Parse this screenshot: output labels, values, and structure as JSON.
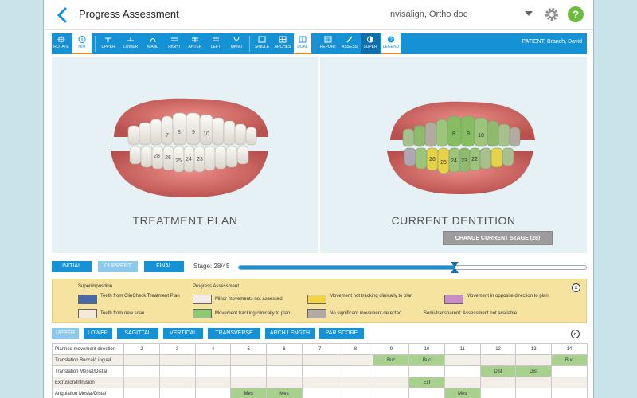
{
  "header": {
    "title": "Progress Assessment",
    "user": "Invisalign, Ortho doc"
  },
  "toolbar": {
    "items": [
      {
        "label": "ROTATE"
      },
      {
        "label": "N/M"
      },
      {
        "label": "UPPER"
      },
      {
        "label": "LOWER"
      },
      {
        "label": "MANL"
      },
      {
        "label": "RIGHT"
      },
      {
        "label": "ANTER"
      },
      {
        "label": "LEFT"
      },
      {
        "label": "MAND"
      },
      {
        "label": "SINGLE"
      },
      {
        "label": "ARCHES"
      },
      {
        "label": "DUAL"
      },
      {
        "label": "REPORT"
      },
      {
        "label": "ASSESS"
      },
      {
        "label": "SUPER"
      },
      {
        "label": "LEGEND"
      }
    ],
    "patient": "PATIENT, Branch, David"
  },
  "views": {
    "left_label": "TREATMENT PLAN",
    "right_label": "CURRENT DENTITION",
    "change_stage": "CHANGE CURRENT STAGE (28)"
  },
  "stage": {
    "initial": "INITIAL",
    "current": "CURRENT",
    "final": "FINAL",
    "label": "Stage:",
    "value": "28/45",
    "fraction": 0.622
  },
  "legend": {
    "superimposition": "Superimposition",
    "progress": "Progress Assessment",
    "items": [
      {
        "text": "Teeth from ClinCheck Treatment Plan",
        "color": "#4a6aa3"
      },
      {
        "text": "Teeth from new scan",
        "color": "#f6ead6"
      },
      {
        "text": "Minor movements not assessed",
        "color": "#f1ece6"
      },
      {
        "text": "Movement tracking clinically to plan",
        "color": "#8fca72"
      },
      {
        "text": "Movement not tracking clinically to plan",
        "color": "#f2d340"
      },
      {
        "text": "No significant movement detected",
        "color": "#b3aba2"
      },
      {
        "text": "Movement in opposite direction to plan",
        "color": "#c98cc4"
      },
      {
        "text": "Semi-transparent:  Assessment not available"
      }
    ]
  },
  "movement_tabs": [
    "UPPER",
    "LOWER",
    "SAGITTAL",
    "VERTICAL",
    "TRANSVERSE",
    "ARCH LENGTH",
    "PAR SCORE"
  ],
  "table": {
    "header_label": "Planned movement direction",
    "teeth": [
      "2",
      "3",
      "4",
      "5",
      "6",
      "7",
      "8",
      "9",
      "10",
      "11",
      "12",
      "13",
      "14"
    ],
    "rows": [
      {
        "label": "Translation Buccal/Lingual",
        "cells": [
          "",
          "",
          "",
          "",
          "",
          "",
          "",
          "Buc",
          "Buc",
          "",
          "",
          "",
          "Buc"
        ]
      },
      {
        "label": "Translation Mesial/Distal",
        "cells": [
          "",
          "",
          "",
          "",
          "",
          "",
          "",
          "",
          "",
          "",
          "Dist",
          "Dist",
          ""
        ]
      },
      {
        "label": "Extrusion/Intrusion",
        "cells": [
          "",
          "",
          "",
          "",
          "",
          "",
          "",
          "",
          "Ext",
          "",
          "",
          "",
          ""
        ]
      },
      {
        "label": "Angulation Mesial/Distal",
        "cells": [
          "",
          "",
          "",
          "Mes",
          "Mes",
          "",
          "",
          "",
          "",
          "Mes",
          "",
          "",
          ""
        ]
      }
    ]
  },
  "teeth_numbers_left": [
    "7",
    "8",
    "9",
    "10",
    "24",
    "25",
    "26",
    "23",
    "28"
  ],
  "teeth_numbers_right": [
    "8",
    "9",
    "10",
    "24",
    "25",
    "26",
    "22",
    "23"
  ]
}
